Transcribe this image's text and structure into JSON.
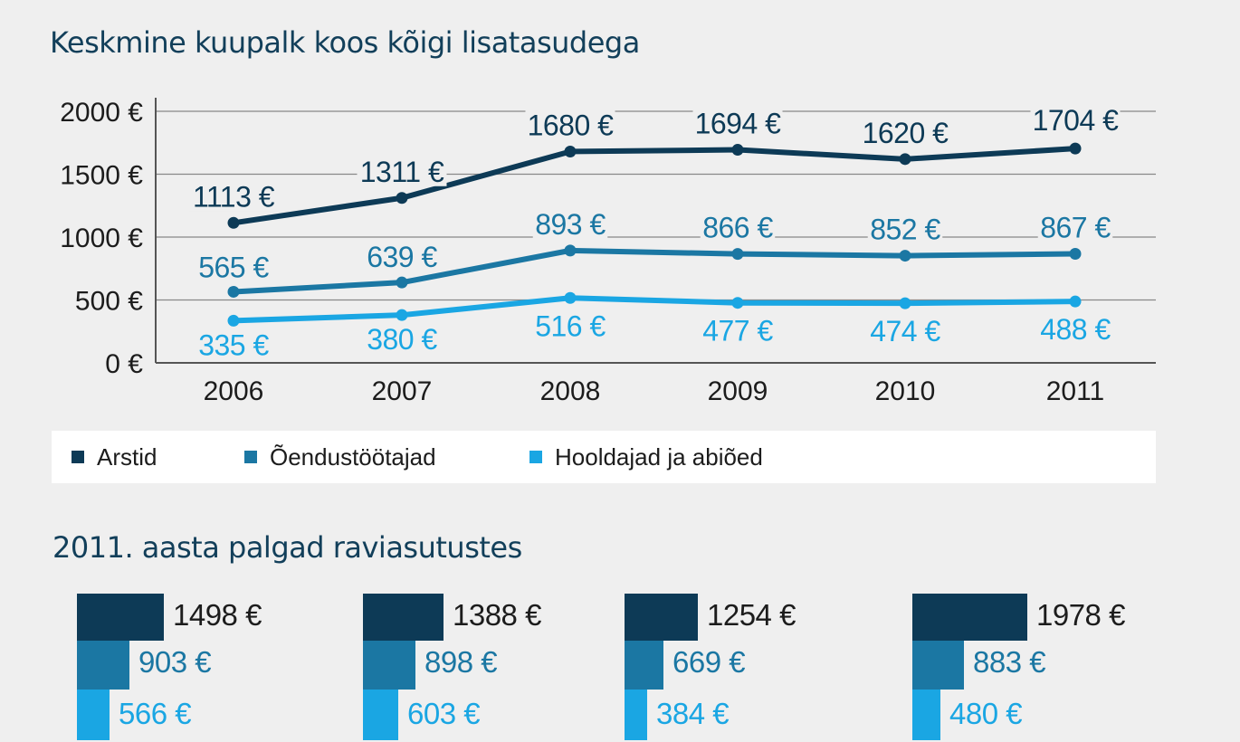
{
  "colors": {
    "arstid": "#0d3a56",
    "oendus": "#1b77a3",
    "hooldajad": "#1aa6e3",
    "grid": "#888888",
    "axis": "#555555",
    "text": "#1c1c1c"
  },
  "titles": {
    "main": "Keskmine kuupalk koos kõigi lisatasudega",
    "second": "2011. aasta palgad raviasutustes"
  },
  "legend": [
    {
      "label": "Arstid",
      "color": "#0d3a56"
    },
    {
      "label": "Õendustöötajad",
      "color": "#1b77a3"
    },
    {
      "label": "Hooldajad ja abiõed",
      "color": "#1aa6e3"
    }
  ],
  "chart_data": [
    {
      "type": "line",
      "title": "Keskmine kuupalk koos kõigi lisatasudega",
      "x": [
        "2006",
        "2007",
        "2008",
        "2009",
        "2010",
        "2011"
      ],
      "ylim": [
        0,
        2000
      ],
      "yticks": [
        0,
        500,
        1000,
        1500,
        2000
      ],
      "ytick_labels": [
        "0 €",
        "500 €",
        "1000 €",
        "1500 €",
        "2000 €"
      ],
      "grid": true,
      "legend_position": "bottom",
      "series": [
        {
          "name": "Arstid",
          "color": "#0d3a56",
          "values": [
            1113,
            1311,
            1680,
            1694,
            1620,
            1704
          ],
          "labels": [
            "1113 €",
            "1311 €",
            "1680 €",
            "1694 €",
            "1620 €",
            "1704 €"
          ]
        },
        {
          "name": "Õendustöötajad",
          "color": "#1b77a3",
          "values": [
            565,
            639,
            893,
            866,
            852,
            867
          ],
          "labels": [
            "565 €",
            "639 €",
            "893 €",
            "866 €",
            "852 €",
            "867 €"
          ]
        },
        {
          "name": "Hooldajad ja abiõed",
          "color": "#1aa6e3",
          "values": [
            335,
            380,
            516,
            477,
            474,
            488
          ],
          "labels": [
            "335 €",
            "380 €",
            "516 €",
            "477 €",
            "474 €",
            "488 €"
          ]
        }
      ]
    },
    {
      "type": "bar",
      "title": "2011. aasta palgad raviasutustes",
      "orientation": "horizontal",
      "groups": [
        {
          "values": [
            1498,
            903,
            566
          ],
          "labels": [
            "1498 €",
            "903 €",
            "566 €"
          ]
        },
        {
          "values": [
            1388,
            898,
            603
          ],
          "labels": [
            "1388 €",
            "898 €",
            "603 €"
          ]
        },
        {
          "values": [
            1254,
            669,
            384
          ],
          "labels": [
            "1254 €",
            "669 €",
            "384 €"
          ]
        },
        {
          "values": [
            1978,
            883,
            480
          ],
          "labels": [
            "1978 €",
            "883 €",
            "480 €"
          ]
        }
      ],
      "series": [
        "Arstid",
        "Õendustöötajad",
        "Hooldajad ja abiõed"
      ]
    }
  ]
}
